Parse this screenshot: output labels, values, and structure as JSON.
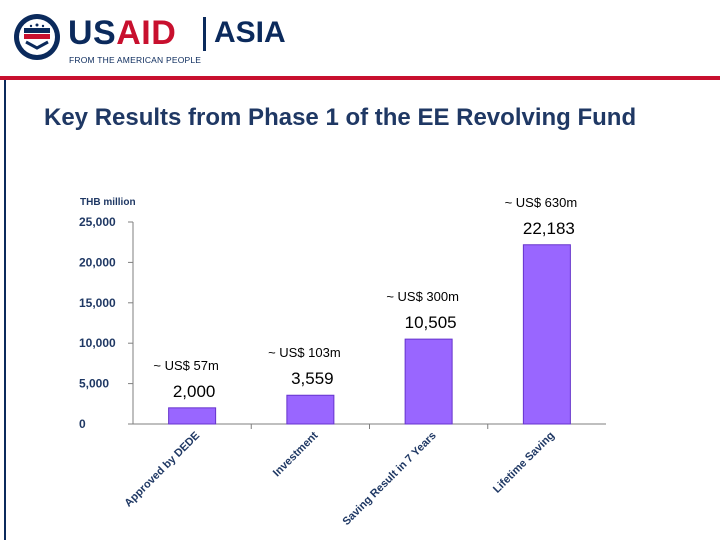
{
  "header": {
    "brand_usaid": "USAID",
    "brand_region": "ASIA",
    "tagline": "FROM THE AMERICAN PEOPLE"
  },
  "title": "Key Results from Phase 1 of the EE Revolving Fund",
  "colors": {
    "bar_fill": "#9966ff",
    "bar_edge": "#6633cc",
    "title": "#1f3864",
    "brand_red": "#c8102e",
    "brand_navy": "#0b2a5c"
  },
  "chart_data": {
    "type": "bar",
    "title": "",
    "ylabel": "THB million",
    "xlabel": "",
    "ylim": [
      0,
      25000
    ],
    "yticks": [
      0,
      5000,
      10000,
      15000,
      20000,
      25000
    ],
    "ytick_labels": [
      "0",
      "5,000",
      "10,000",
      "15,000",
      "20,000",
      "25,000"
    ],
    "grid": false,
    "categories": [
      "Approved by DEDE",
      "Investment",
      "Saving Result in 7 Years",
      "Lifetime Saving"
    ],
    "values": [
      2000,
      3559,
      10505,
      22183
    ],
    "value_labels": [
      "2,000",
      "3,559",
      "10,505",
      "22,183"
    ],
    "usd_labels": [
      "~ US$ 57m",
      "~ US$ 103m",
      "~ US$ 300m",
      "~ US$ 630m"
    ]
  }
}
